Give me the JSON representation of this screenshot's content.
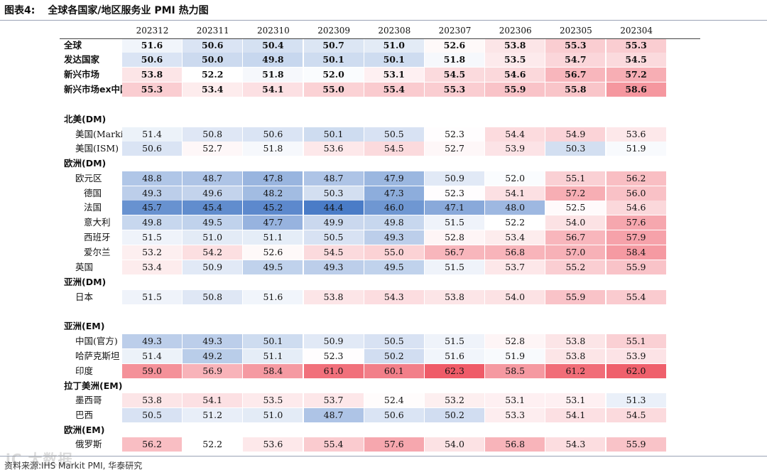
{
  "title": {
    "label": "图表4:",
    "text": "全球各国家/地区服务业 PMI 热力图"
  },
  "source": "资料来源:IHS Markit PMI, 华泰研究",
  "watermark": "iC 大数据",
  "colors": {
    "low": "#4a7cc7",
    "mid": "#ffffff",
    "high": "#ef5b68"
  },
  "chart_data": {
    "type": "heatmap",
    "title": "全球各国家/地区服务业 PMI 热力图",
    "columns": [
      "202312",
      "202311",
      "202310",
      "202309",
      "202308",
      "202307",
      "202306",
      "202305",
      "202304"
    ],
    "color_scale": {
      "min": 44.4,
      "mid": 52.2,
      "max": 62.3
    },
    "rows": [
      {
        "label": "全球",
        "style": "bold",
        "values": [
          51.6,
          50.6,
          50.4,
          50.7,
          51.0,
          52.6,
          53.8,
          55.3,
          55.3
        ]
      },
      {
        "label": "发达国家",
        "style": "bold",
        "values": [
          50.6,
          50.0,
          49.8,
          50.1,
          50.1,
          51.8,
          53.5,
          54.7,
          54.5
        ]
      },
      {
        "label": "新兴市场",
        "style": "bold",
        "values": [
          53.8,
          52.2,
          51.8,
          52.0,
          53.1,
          54.5,
          54.6,
          56.7,
          57.2
        ]
      },
      {
        "label": "新兴市场ex中国",
        "style": "bold",
        "values": [
          55.3,
          53.4,
          54.1,
          55.0,
          55.4,
          55.3,
          55.9,
          55.8,
          58.6
        ]
      },
      {
        "label": "北美(DM)",
        "style": "header",
        "values": []
      },
      {
        "label": "美国(Markit)",
        "style": "sub1",
        "values": [
          51.4,
          50.8,
          50.6,
          50.1,
          50.5,
          52.3,
          54.4,
          54.9,
          53.6
        ]
      },
      {
        "label": "美国(ISM)",
        "style": "sub1",
        "values": [
          50.6,
          52.7,
          51.8,
          53.6,
          54.5,
          52.7,
          53.9,
          50.3,
          51.9
        ]
      },
      {
        "label": "欧洲(DM)",
        "style": "header",
        "values": []
      },
      {
        "label": "欧元区",
        "style": "sub1",
        "values": [
          48.8,
          48.7,
          47.8,
          48.7,
          47.9,
          50.9,
          52.0,
          55.1,
          56.2
        ]
      },
      {
        "label": "德国",
        "style": "sub3",
        "values": [
          49.3,
          49.6,
          48.2,
          50.3,
          47.3,
          52.3,
          54.1,
          57.2,
          56.0
        ]
      },
      {
        "label": "法国",
        "style": "sub3",
        "values": [
          45.7,
          45.4,
          45.2,
          44.4,
          46.0,
          47.1,
          48.0,
          52.5,
          54.6
        ]
      },
      {
        "label": "意大利",
        "style": "sub3",
        "values": [
          49.8,
          49.5,
          47.7,
          49.9,
          49.8,
          51.5,
          52.2,
          54.0,
          57.6
        ]
      },
      {
        "label": "西班牙",
        "style": "sub3",
        "values": [
          51.5,
          51.0,
          51.1,
          50.5,
          49.3,
          52.8,
          53.4,
          56.7,
          57.9
        ]
      },
      {
        "label": "爱尔兰",
        "style": "sub3",
        "values": [
          53.2,
          54.2,
          52.6,
          54.5,
          55.0,
          56.7,
          56.8,
          57.0,
          58.4
        ]
      },
      {
        "label": "英国",
        "style": "sub1",
        "values": [
          53.4,
          50.9,
          49.5,
          49.3,
          49.5,
          51.5,
          53.7,
          55.2,
          55.9
        ]
      },
      {
        "label": "亚洲(DM)",
        "style": "header",
        "values": []
      },
      {
        "label": "日本",
        "style": "sub1",
        "values": [
          51.5,
          50.8,
          51.6,
          53.8,
          54.3,
          53.8,
          54.0,
          55.9,
          55.4
        ]
      },
      {
        "label": "亚洲(EM)",
        "style": "header",
        "values": []
      },
      {
        "label": "中国(官方)",
        "style": "sub1",
        "values": [
          49.3,
          49.3,
          50.1,
          50.9,
          50.5,
          51.5,
          52.8,
          53.8,
          55.1
        ]
      },
      {
        "label": "哈萨克斯坦",
        "style": "sub1",
        "values": [
          51.4,
          49.2,
          51.1,
          52.3,
          50.2,
          51.6,
          51.9,
          53.8,
          53.9
        ]
      },
      {
        "label": "印度",
        "style": "sub1",
        "values": [
          59.0,
          56.9,
          58.4,
          61.0,
          60.1,
          62.3,
          58.5,
          61.2,
          62.0
        ]
      },
      {
        "label": "拉丁美洲(EM)",
        "style": "header",
        "values": []
      },
      {
        "label": "墨西哥",
        "style": "sub1",
        "values": [
          53.8,
          54.1,
          53.5,
          53.7,
          52.4,
          53.2,
          53.1,
          53.1,
          51.3
        ]
      },
      {
        "label": "巴西",
        "style": "sub1",
        "values": [
          50.5,
          51.2,
          51.0,
          48.7,
          50.6,
          50.2,
          53.3,
          54.1,
          54.5
        ]
      },
      {
        "label": "欧洲(EM)",
        "style": "header",
        "values": []
      },
      {
        "label": "俄罗斯",
        "style": "sub1",
        "values": [
          56.2,
          52.2,
          53.6,
          55.4,
          57.6,
          54.0,
          56.8,
          54.3,
          55.9
        ]
      }
    ]
  }
}
